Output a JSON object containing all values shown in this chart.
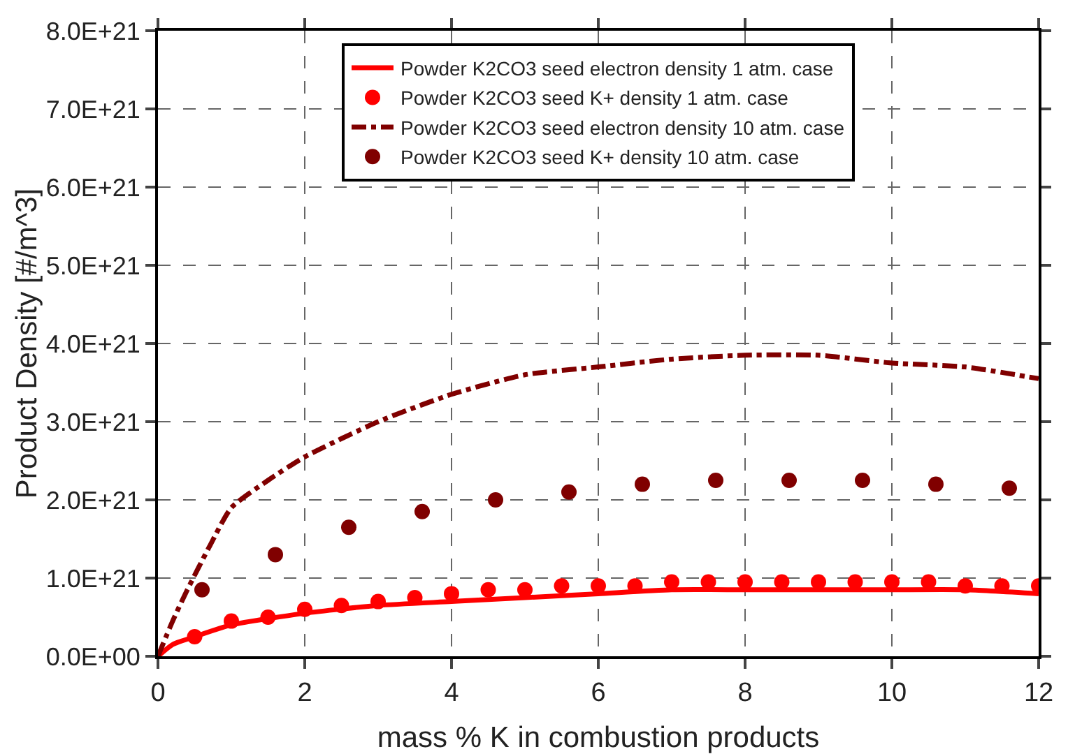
{
  "chart_data": {
    "type": "line",
    "xlabel": "mass % K in combustion products",
    "ylabel": "Product Density [#/m^3]",
    "xlim": [
      0,
      12
    ],
    "xticks": [
      0,
      2,
      4,
      6,
      8,
      10,
      12
    ],
    "ylim": [
      0,
      8e+21
    ],
    "yticks": [
      {
        "value": 0,
        "label": "0.0E+00"
      },
      {
        "value": 1e+21,
        "label": "1.0E+21"
      },
      {
        "value": 2e+21,
        "label": "2.0E+21"
      },
      {
        "value": 3e+21,
        "label": "3.0E+21"
      },
      {
        "value": 4e+21,
        "label": "4.0E+21"
      },
      {
        "value": 5e+21,
        "label": "5.0E+21"
      },
      {
        "value": 6e+21,
        "label": "6.0E+21"
      },
      {
        "value": 7e+21,
        "label": "7.0E+21"
      },
      {
        "value": 8e+21,
        "label": "8.0E+21"
      }
    ],
    "grid": true,
    "legend": "top",
    "series": [
      {
        "name": "Powder K2CO3 seed electron density 1 atm. case",
        "color": "#ff0000",
        "line_style": "solid",
        "marker": "none",
        "x": [
          0,
          0.2,
          0.5,
          1,
          2,
          3,
          4,
          5,
          6,
          7,
          8,
          9,
          10,
          11,
          12
        ],
        "values": [
          0,
          1.5e+20,
          2.5e+20,
          4e+20,
          5.5e+20,
          6.5e+20,
          7e+20,
          7.5e+20,
          8e+20,
          8.5e+20,
          8.5e+20,
          8.5e+20,
          8.5e+20,
          8.5e+20,
          8e+20
        ]
      },
      {
        "name": "Powder K2CO3 seed K+ density 1 atm. case",
        "type": "scatter",
        "color": "#ff0000",
        "marker": "circle",
        "x": [
          0.5,
          1,
          1.5,
          2,
          2.5,
          3,
          3.5,
          4,
          4.5,
          5,
          5.5,
          6,
          6.5,
          7,
          7.5,
          8,
          8.5,
          9,
          9.5,
          10,
          10.5,
          11,
          11.5,
          12
        ],
        "values": [
          2.5e+20,
          4.5e+20,
          5e+20,
          6e+20,
          6.5e+20,
          7e+20,
          7.5e+20,
          8e+20,
          8.5e+20,
          8.5e+20,
          9e+20,
          9e+20,
          9e+20,
          9.5e+20,
          9.5e+20,
          9.5e+20,
          9.5e+20,
          9.5e+20,
          9.5e+20,
          9.5e+20,
          9.5e+20,
          9e+20,
          9e+20,
          9e+20
        ]
      },
      {
        "name": "Powder K2CO3 seed electron density 10 atm. case",
        "color": "#800000",
        "line_style": "dashdot",
        "marker": "none",
        "x": [
          0,
          0.2,
          0.4,
          0.7,
          1,
          1.5,
          2,
          3,
          4,
          5,
          6,
          7,
          8,
          9,
          10,
          11,
          12
        ],
        "values": [
          0,
          4.5e+20,
          8.5e+20,
          1.4e+21,
          1.9e+21,
          2.25e+21,
          2.55e+21,
          3e+21,
          3.35e+21,
          3.6e+21,
          3.7e+21,
          3.8e+21,
          3.85e+21,
          3.85e+21,
          3.75e+21,
          3.7e+21,
          3.55e+21
        ]
      },
      {
        "name": "Powder K2CO3 seed K+ density 10 atm. case",
        "type": "scatter",
        "color": "#800000",
        "marker": "circle",
        "x": [
          0.6,
          1.6,
          2.6,
          3.6,
          4.6,
          5.6,
          6.6,
          7.6,
          8.6,
          9.6,
          10.6,
          11.6
        ],
        "values": [
          8.5e+20,
          1.3e+21,
          1.65e+21,
          1.85e+21,
          2e+21,
          2.1e+21,
          2.2e+21,
          2.25e+21,
          2.25e+21,
          2.25e+21,
          2.2e+21,
          2.15e+21
        ]
      }
    ]
  }
}
